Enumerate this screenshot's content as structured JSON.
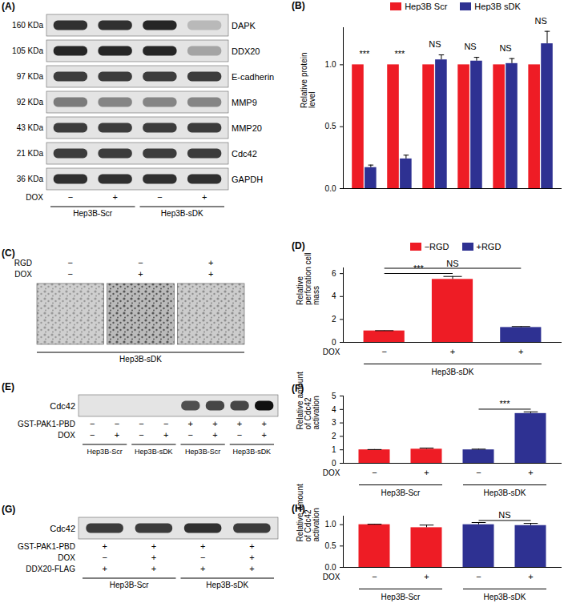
{
  "chart_data": [
    {
      "type": "bar",
      "title": "(B)",
      "categories": [
        null,
        null,
        null,
        null,
        null,
        null
      ],
      "series": [
        {
          "name": "Hep3B Scr",
          "color": "#ee1c25",
          "values": [
            1,
            1,
            1,
            1,
            1,
            1
          ]
        },
        {
          "name": "Hep3B sDK",
          "color": "#2e3192",
          "values": [
            0.17,
            0.24,
            1.04,
            1.03,
            1.01,
            1.17
          ],
          "errors": [
            0.02,
            0.03,
            0.04,
            0.03,
            0.04,
            0.1
          ]
        }
      ],
      "ylabel": "Relative protein level",
      "ylim": [
        0,
        1.3
      ],
      "yticks": [
        {
          "value": 0,
          "label": "0.0"
        },
        {
          "value": 0.5,
          "label": "0.5"
        },
        {
          "value": 1,
          "label": "1.0"
        }
      ],
      "legend": "top",
      "tick_labels": "y",
      "annotations": [
        {
          "text": "***",
          "category": 0
        },
        {
          "text": "***",
          "category": 1
        },
        {
          "text": "NS",
          "category": 2
        },
        {
          "text": "NS",
          "category": 3
        },
        {
          "text": "NS",
          "category": 4
        },
        {
          "text": "NS",
          "category": 5
        }
      ]
    },
    {
      "type": "bar",
      "title": "(D)",
      "categories": [
        null,
        null,
        null
      ],
      "series": [
        {
          "name": "−RGD",
          "color": "#ee1c25",
          "values": [
            1,
            5.5,
            null
          ],
          "errors": [
            0.02,
            0.25,
            null
          ]
        },
        {
          "name": "+RGD",
          "color": "#2e3192",
          "values": [
            null,
            null,
            1.3
          ],
          "errors": [
            null,
            null,
            0.08
          ]
        }
      ],
      "ylabel": "Relative perforation cell mass",
      "ylim": [
        0,
        6.5
      ],
      "yticks": [
        0,
        2,
        4,
        6
      ],
      "legend": "top",
      "tick_labels": "y",
      "annotations": [
        {
          "text": "***",
          "from": 0,
          "to": 1
        },
        {
          "text": "NS",
          "from": 0,
          "to": 2
        }
      ],
      "conditions": [
        {
          "name": "DOX",
          "values": [
            "−",
            "+",
            "+"
          ]
        }
      ],
      "groups": [
        {
          "label": "Hep3B-sDK",
          "span": [
            0,
            2
          ]
        }
      ]
    },
    {
      "type": "bar",
      "title": "(F)",
      "categories": [
        null,
        null,
        null,
        null
      ],
      "values": [
        1,
        1.05,
        1,
        3.7
      ],
      "errors": [
        0.02,
        0.08,
        0.05,
        0.12
      ],
      "colors": [
        "#ee1c25",
        "#ee1c25",
        "#2e3192",
        "#2e3192"
      ],
      "ylabel": "Relative amount of Cdc42 activation",
      "ylim": [
        0,
        5
      ],
      "yticks": [
        0,
        1,
        2,
        3,
        4,
        5
      ],
      "tick_labels": "y",
      "annotations": [
        {
          "text": "***",
          "from": 2,
          "to": 3
        }
      ],
      "conditions": [
        {
          "name": "DOX",
          "values": [
            "−",
            "+",
            "−",
            "+"
          ]
        }
      ],
      "groups": [
        {
          "label": "Hep3B-Scr",
          "span": [
            0,
            1
          ]
        },
        {
          "label": "Hep3B-sDK",
          "span": [
            2,
            3
          ]
        }
      ]
    },
    {
      "type": "bar",
      "title": "(H)",
      "categories": [
        null,
        null,
        null,
        null
      ],
      "values": [
        1,
        0.93,
        1,
        0.98
      ],
      "errors": [
        0.01,
        0.06,
        0.05,
        0.05
      ],
      "colors": [
        "#ee1c25",
        "#ee1c25",
        "#2e3192",
        "#2e3192"
      ],
      "ylabel": "Relative amount of Cdc42 activation",
      "ylim": [
        0,
        1.2
      ],
      "yticks": [
        {
          "value": 0,
          "label": "0.0"
        },
        {
          "value": 0.5,
          "label": "0.5"
        },
        {
          "value": 1,
          "label": "1.0"
        }
      ],
      "tick_labels": "y",
      "annotations": [
        {
          "text": "NS",
          "from": 2,
          "to": 3
        }
      ],
      "conditions": [
        {
          "name": "DOX",
          "values": [
            "−",
            "+",
            "−",
            "+"
          ]
        }
      ],
      "groups": [
        {
          "label": "Hep3B-Scr",
          "span": [
            0,
            1
          ]
        },
        {
          "label": "Hep3B-sDK",
          "span": [
            2,
            3
          ]
        }
      ]
    }
  ],
  "blots": [
    {
      "title": "(A)",
      "rows": [
        {
          "size": "160 KDa",
          "label": "DAPK",
          "intensity": [
            0.85,
            0.85,
            0.9,
            0.2
          ]
        },
        {
          "size": "105 KDa",
          "label": "DDX20",
          "intensity": [
            0.9,
            0.9,
            0.9,
            0.3
          ]
        },
        {
          "size": "97 KDa",
          "label": "E-cadherin",
          "intensity": [
            0.8,
            0.8,
            0.8,
            0.8
          ]
        },
        {
          "size": "92 KDa",
          "label": "MMP9",
          "intensity": [
            0.5,
            0.45,
            0.45,
            0.45
          ]
        },
        {
          "size": "43 KDa",
          "label": "MMP20",
          "intensity": [
            0.8,
            0.8,
            0.8,
            0.8
          ]
        },
        {
          "size": "21 KDa",
          "label": "Cdc42",
          "intensity": [
            0.8,
            0.8,
            0.8,
            0.8
          ]
        },
        {
          "size": "36 KDa",
          "label": "GAPDH",
          "intensity": [
            0.85,
            0.85,
            0.85,
            0.85
          ]
        }
      ],
      "conditions": [
        {
          "name": "DOX",
          "values": [
            "−",
            "+",
            "−",
            "+"
          ]
        }
      ],
      "groups": [
        {
          "label": "Hep3B-Scr",
          "span": [
            0,
            1
          ]
        },
        {
          "label": "Hep3B-sDK",
          "span": [
            2,
            3
          ]
        }
      ]
    },
    {
      "title": "(E)",
      "rows": [
        {
          "label": "Cdc42",
          "intensity": [
            0,
            0,
            0,
            0,
            0.7,
            0.75,
            0.75,
            1
          ]
        }
      ],
      "conditions": [
        {
          "name": "GST-PAK1-PBD",
          "values": [
            "−",
            "−",
            "−",
            "−",
            "+",
            "+",
            "+",
            "+"
          ]
        },
        {
          "name": "DOX",
          "values": [
            "−",
            "+",
            "−",
            "+",
            "−",
            "+",
            "−",
            "+"
          ]
        }
      ],
      "groups": [
        {
          "label": "Hep3B-Scr",
          "span": [
            0,
            1
          ]
        },
        {
          "label": "Hep3B-sDK",
          "span": [
            2,
            3
          ]
        },
        {
          "label": "Hep3B-Scr",
          "span": [
            4,
            5
          ]
        },
        {
          "label": "Hep3B-sDK",
          "span": [
            6,
            7
          ]
        }
      ]
    },
    {
      "title": "(G)",
      "rows": [
        {
          "label": "Cdc42",
          "intensity": [
            0.8,
            0.8,
            0.85,
            0.8
          ]
        }
      ],
      "conditions": [
        {
          "name": "GST-PAK1-PBD",
          "values": [
            "+",
            "+",
            "+",
            "+"
          ]
        },
        {
          "name": "DOX",
          "values": [
            "−",
            "+",
            "−",
            "+"
          ]
        },
        {
          "name": "DDX20-FLAG",
          "values": [
            "+",
            "+",
            "+",
            "+"
          ]
        }
      ],
      "groups": [
        {
          "label": "Hep3B-Scr",
          "span": [
            0,
            1
          ]
        },
        {
          "label": "Hep3B-sDK",
          "span": [
            2,
            3
          ]
        }
      ]
    }
  ],
  "images": [
    {
      "title": "(C)",
      "conditions": [
        {
          "name": "RGD",
          "values": [
            "−",
            "−",
            "+"
          ]
        },
        {
          "name": "DOX",
          "values": [
            "−",
            "+",
            "+"
          ]
        }
      ],
      "density": [
        0.35,
        0.75,
        0.4
      ],
      "groups": [
        {
          "label": "Hep3B-sDK",
          "span": [
            0,
            2
          ]
        }
      ]
    }
  ]
}
